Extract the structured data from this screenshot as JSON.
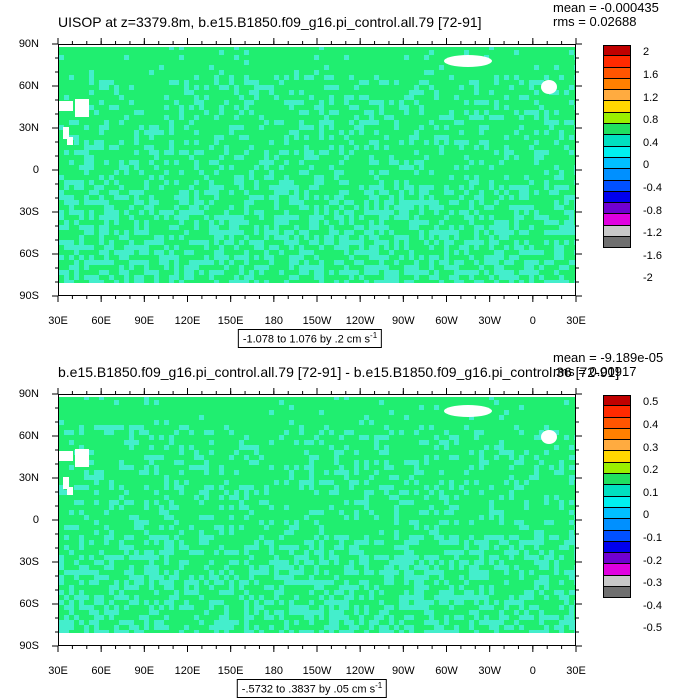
{
  "chart_data": [
    {
      "type": "heatmap",
      "title": "UISOP at z=3379.8m, b.e15.B1850.f09_g16.pi_control.all.79 [72-91]",
      "mean": "mean = -0.000435",
      "rms": "rms = 0.02688",
      "y_ticks": [
        "90N",
        "60N",
        "30N",
        "0",
        "30S",
        "60S",
        "90S"
      ],
      "x_ticks": [
        "30E",
        "60E",
        "90E",
        "120E",
        "150E",
        "180",
        "150W",
        "120W",
        "90W",
        "60W",
        "30W",
        "0",
        "30E"
      ],
      "colorbar": {
        "labels": [
          "2",
          "1.6",
          "1.2",
          "0.8",
          "0.4",
          "0",
          "-0.4",
          "-0.8",
          "-1.2",
          "-1.6",
          "-2"
        ],
        "colors": [
          "#c00000",
          "#ff2a00",
          "#ff5500",
          "#ff8000",
          "#ffab40",
          "#ffd700",
          "#9af000",
          "#20e060",
          "#00e0c0",
          "#00f0f0",
          "#00c0ff",
          "#0090ff",
          "#0050ff",
          "#0000ee",
          "#7000d0",
          "#e000e0",
          "#c8c8c8",
          "#707070"
        ]
      },
      "range_text": "-1.078 to 1.076 by .2 cm s",
      "range_unit_sup": "-1",
      "field_base": "#20ee70",
      "field_secondary": "#44eecc",
      "land_mask": "#ffffff"
    },
    {
      "type": "heatmap",
      "title": "b.e15.B1850.f09_g16.pi_control.all.79 [72-91] - b.e15.B1850.f09_g16.pi_control.36 [72-91]",
      "mean": "mean = -9.189e-05",
      "rms": "rms = 0.00917",
      "y_ticks": [
        "90N",
        "60N",
        "30N",
        "0",
        "30S",
        "60S",
        "90S"
      ],
      "x_ticks": [
        "30E",
        "60E",
        "90E",
        "120E",
        "150E",
        "180",
        "150W",
        "120W",
        "90W",
        "60W",
        "30W",
        "0",
        "30E"
      ],
      "colorbar": {
        "labels": [
          "0.5",
          "0.4",
          "0.3",
          "0.2",
          "0.1",
          "0",
          "-0.1",
          "-0.2",
          "-0.3",
          "-0.4",
          "-0.5"
        ],
        "colors": [
          "#c00000",
          "#ff2a00",
          "#ff5500",
          "#ff8000",
          "#ffab40",
          "#ffd700",
          "#9af000",
          "#20e060",
          "#00e0c0",
          "#00f0f0",
          "#00c0ff",
          "#0090ff",
          "#0050ff",
          "#0000ee",
          "#7000d0",
          "#e000e0",
          "#c8c8c8",
          "#707070"
        ]
      },
      "range_text": "-.5732 to .3837 by .05 cm s",
      "range_unit_sup": "-1",
      "field_base": "#20ee70",
      "field_secondary": "#44eecc",
      "land_mask": "#ffffff"
    }
  ]
}
